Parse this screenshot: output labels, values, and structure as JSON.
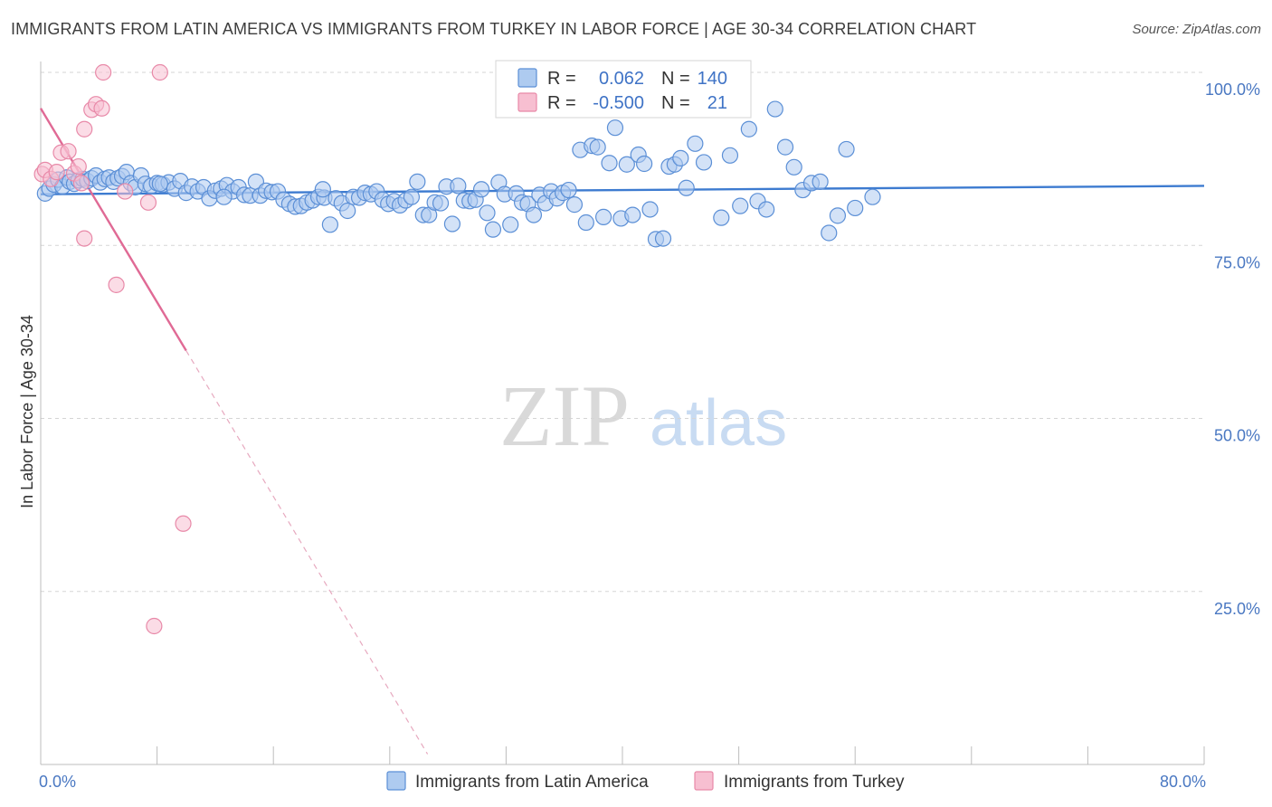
{
  "title": "IMMIGRANTS FROM LATIN AMERICA VS IMMIGRANTS FROM TURKEY IN LABOR FORCE | AGE 30-34 CORRELATION CHART",
  "source": "Source: ZipAtlas.com",
  "watermark": {
    "zip": "ZIP",
    "atlas": "atlas"
  },
  "colors": {
    "blue_fill": "#aecbf0",
    "blue_stroke": "#5b8fd6",
    "blue_line": "#3d7bd0",
    "pink_fill": "#f7bfd1",
    "pink_stroke": "#e889a8",
    "pink_line": "#e06a95",
    "grid": "#d5d5d5",
    "axis_label": "#4a78c2"
  },
  "legend_stats": [
    {
      "r_label": "R =",
      "r_value": "0.062",
      "n_label": "N =",
      "n_value": "140"
    },
    {
      "r_label": "R =",
      "r_value": "-0.500",
      "n_label": "N =",
      "n_value": "21"
    }
  ],
  "chart_data": {
    "type": "scatter",
    "title": "IMMIGRANTS FROM LATIN AMERICA VS IMMIGRANTS FROM TURKEY IN LABOR FORCE | AGE 30-34 CORRELATION CHART",
    "xlabel": "",
    "ylabel": "In Labor Force | Age 30-34",
    "xlim": [
      0,
      80
    ],
    "ylim": [
      0,
      100
    ],
    "x_ticks": [
      0,
      8,
      16,
      24,
      32,
      40,
      48,
      56,
      64,
      72,
      80
    ],
    "x_tick_labels": {
      "0": "0.0%",
      "80": "80.0%"
    },
    "y_ticks": [
      25,
      50,
      75,
      100
    ],
    "y_tick_labels": [
      "25.0%",
      "50.0%",
      "75.0%",
      "100.0%"
    ],
    "legend": [
      "Immigrants from Latin America",
      "Immigrants from Turkey"
    ],
    "series": [
      {
        "name": "Immigrants from Latin America",
        "r": 0.062,
        "n": 140,
        "trend": {
          "x0": 0,
          "y0": 82.4,
          "x1": 80,
          "y1": 83.6
        },
        "points": [
          [
            0.3,
            82.5
          ],
          [
            0.6,
            83.2
          ],
          [
            0.9,
            83.8
          ],
          [
            1.2,
            84.5
          ],
          [
            1.5,
            83.5
          ],
          [
            1.8,
            84.8
          ],
          [
            2.0,
            84.2
          ],
          [
            2.3,
            83.9
          ],
          [
            2.6,
            84.4
          ],
          [
            2.9,
            84.6
          ],
          [
            3.2,
            84.3
          ],
          [
            3.5,
            84.7
          ],
          [
            3.8,
            85.1
          ],
          [
            4.1,
            84.1
          ],
          [
            4.4,
            84.6
          ],
          [
            4.7,
            84.8
          ],
          [
            5.0,
            84.2
          ],
          [
            5.3,
            84.7
          ],
          [
            5.6,
            85.0
          ],
          [
            5.9,
            85.6
          ],
          [
            6.2,
            84.0
          ],
          [
            6.5,
            83.4
          ],
          [
            6.9,
            85.1
          ],
          [
            7.2,
            83.9
          ],
          [
            7.6,
            83.6
          ],
          [
            8.0,
            84.0
          ],
          [
            8.4,
            83.8
          ],
          [
            8.8,
            84.1
          ],
          [
            9.2,
            83.2
          ],
          [
            9.6,
            84.3
          ],
          [
            10.0,
            82.6
          ],
          [
            10.4,
            83.5
          ],
          [
            10.8,
            82.8
          ],
          [
            11.2,
            83.4
          ],
          [
            11.6,
            81.8
          ],
          [
            12.0,
            82.9
          ],
          [
            12.4,
            83.2
          ],
          [
            12.8,
            83.7
          ],
          [
            13.2,
            82.8
          ],
          [
            13.6,
            83.4
          ],
          [
            14.0,
            82.3
          ],
          [
            14.4,
            82.2
          ],
          [
            14.8,
            84.2
          ],
          [
            15.1,
            82.2
          ],
          [
            15.5,
            82.9
          ],
          [
            15.9,
            82.7
          ],
          [
            16.3,
            82.8
          ],
          [
            16.7,
            81.6
          ],
          [
            17.1,
            81.0
          ],
          [
            17.5,
            80.6
          ],
          [
            17.9,
            80.7
          ],
          [
            18.3,
            81.2
          ],
          [
            18.7,
            81.5
          ],
          [
            19.1,
            82.0
          ],
          [
            19.5,
            81.9
          ],
          [
            19.9,
            78.0
          ],
          [
            20.3,
            81.8
          ],
          [
            20.7,
            81.1
          ],
          [
            21.1,
            80.0
          ],
          [
            21.5,
            82.0
          ],
          [
            21.9,
            81.9
          ],
          [
            22.3,
            82.6
          ],
          [
            22.7,
            82.4
          ],
          [
            23.1,
            82.8
          ],
          [
            23.5,
            81.6
          ],
          [
            23.9,
            81.0
          ],
          [
            24.3,
            81.4
          ],
          [
            24.7,
            80.8
          ],
          [
            25.1,
            81.5
          ],
          [
            25.5,
            82.0
          ],
          [
            25.9,
            84.2
          ],
          [
            26.3,
            79.4
          ],
          [
            26.7,
            79.4
          ],
          [
            27.1,
            81.2
          ],
          [
            27.5,
            81.1
          ],
          [
            27.9,
            83.5
          ],
          [
            28.3,
            78.1
          ],
          [
            28.7,
            83.6
          ],
          [
            29.1,
            81.5
          ],
          [
            29.5,
            81.4
          ],
          [
            29.9,
            81.6
          ],
          [
            30.3,
            83.1
          ],
          [
            30.7,
            79.7
          ],
          [
            31.1,
            77.3
          ],
          [
            31.5,
            84.1
          ],
          [
            31.9,
            82.4
          ],
          [
            32.3,
            78.0
          ],
          [
            32.7,
            82.5
          ],
          [
            33.1,
            81.2
          ],
          [
            33.5,
            81.0
          ],
          [
            33.9,
            79.4
          ],
          [
            34.3,
            82.3
          ],
          [
            34.7,
            81.1
          ],
          [
            35.1,
            82.8
          ],
          [
            35.5,
            81.8
          ],
          [
            35.9,
            82.6
          ],
          [
            36.3,
            83.0
          ],
          [
            36.7,
            80.9
          ],
          [
            37.1,
            88.8
          ],
          [
            37.5,
            78.3
          ],
          [
            37.9,
            89.4
          ],
          [
            38.3,
            89.2
          ],
          [
            38.7,
            79.1
          ],
          [
            39.1,
            86.9
          ],
          [
            39.5,
            92.0
          ],
          [
            39.9,
            78.9
          ],
          [
            40.3,
            86.7
          ],
          [
            40.7,
            79.4
          ],
          [
            41.1,
            88.1
          ],
          [
            41.5,
            86.8
          ],
          [
            41.9,
            80.2
          ],
          [
            42.3,
            75.9
          ],
          [
            42.8,
            76.0
          ],
          [
            43.2,
            86.4
          ],
          [
            43.6,
            86.7
          ],
          [
            44.0,
            87.6
          ],
          [
            44.4,
            83.3
          ],
          [
            45.0,
            89.7
          ],
          [
            45.6,
            87.0
          ],
          [
            46.2,
            94.8
          ],
          [
            46.8,
            79.0
          ],
          [
            47.4,
            88.0
          ],
          [
            48.1,
            80.7
          ],
          [
            48.7,
            91.8
          ],
          [
            49.3,
            81.4
          ],
          [
            49.9,
            80.2
          ],
          [
            50.5,
            94.7
          ],
          [
            51.2,
            89.2
          ],
          [
            51.8,
            86.3
          ],
          [
            52.4,
            83.0
          ],
          [
            53.0,
            84.0
          ],
          [
            53.6,
            84.2
          ],
          [
            54.2,
            76.8
          ],
          [
            54.8,
            79.3
          ],
          [
            55.4,
            88.9
          ],
          [
            56.0,
            80.4
          ],
          [
            57.2,
            82.0
          ],
          [
            8.2,
            83.9
          ],
          [
            12.6,
            82.0
          ],
          [
            19.4,
            83.1
          ]
        ]
      },
      {
        "name": "Immigrants from Turkey",
        "r": -0.5,
        "n": 21,
        "trend": {
          "x0": 0,
          "y0": 94.8,
          "x1": 10.0,
          "y1": 59.8,
          "dash_x1": 26.6,
          "dash_y1": 1.5
        },
        "points": [
          [
            0.1,
            85.3
          ],
          [
            0.3,
            85.9
          ],
          [
            0.7,
            84.6
          ],
          [
            1.1,
            85.6
          ],
          [
            1.4,
            88.4
          ],
          [
            1.9,
            88.6
          ],
          [
            2.3,
            85.4
          ],
          [
            2.6,
            86.4
          ],
          [
            2.8,
            84.0
          ],
          [
            3.0,
            76.0
          ],
          [
            3.0,
            91.8
          ],
          [
            3.5,
            94.6
          ],
          [
            3.8,
            95.4
          ],
          [
            4.2,
            94.8
          ],
          [
            4.3,
            100.0
          ],
          [
            5.2,
            69.3
          ],
          [
            5.8,
            82.8
          ],
          [
            7.4,
            81.2
          ],
          [
            8.2,
            100.0
          ],
          [
            7.8,
            20.0
          ],
          [
            9.8,
            34.8
          ]
        ]
      }
    ]
  }
}
